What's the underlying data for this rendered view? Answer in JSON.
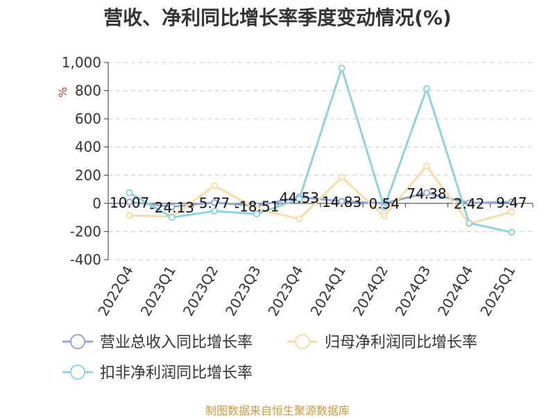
{
  "chart_data": {
    "type": "line",
    "title": "营收、净利同比增长率季度变动情况(%)",
    "ylabel": "%",
    "categories": [
      "2022Q4",
      "2023Q1",
      "2023Q2",
      "2023Q3",
      "2023Q4",
      "2024Q1",
      "2024Q2",
      "2024Q3",
      "2024Q4",
      "2025Q1"
    ],
    "ylim": [
      -400,
      1000
    ],
    "yticks": [
      -400,
      -200,
      0,
      200,
      400,
      600,
      800,
      1000
    ],
    "ytick_labels": [
      "-400",
      "-200",
      "0",
      "200",
      "400",
      "600",
      "800",
      "1,000"
    ],
    "grid": true,
    "legend_position": "bottom",
    "series": [
      {
        "name": "营业总收入同比增长率",
        "color": "#8fa8d8",
        "values": [
          10.07,
          -24.13,
          5.77,
          -18.51,
          44.53,
          14.83,
          0.54,
          74.38,
          2.42,
          9.47
        ],
        "labels": [
          "10.07",
          "-24.13",
          "5.77",
          "-18.51",
          "44.53",
          "14.83",
          "0.54",
          "74.38",
          "2.42",
          "9.47"
        ]
      },
      {
        "name": "归母净利润同比增长率",
        "color": "#f9dba4",
        "values": [
          -85,
          -95,
          125,
          -40,
          -110,
          185,
          -90,
          265,
          -145,
          -60
        ]
      },
      {
        "name": "扣非净利润同比增长率",
        "color": "#8cd3dc",
        "values": [
          75,
          -100,
          -55,
          -75,
          30,
          960,
          -30,
          815,
          -140,
          -205
        ]
      }
    ]
  },
  "source": "制图数据来自恒生聚源数据库"
}
